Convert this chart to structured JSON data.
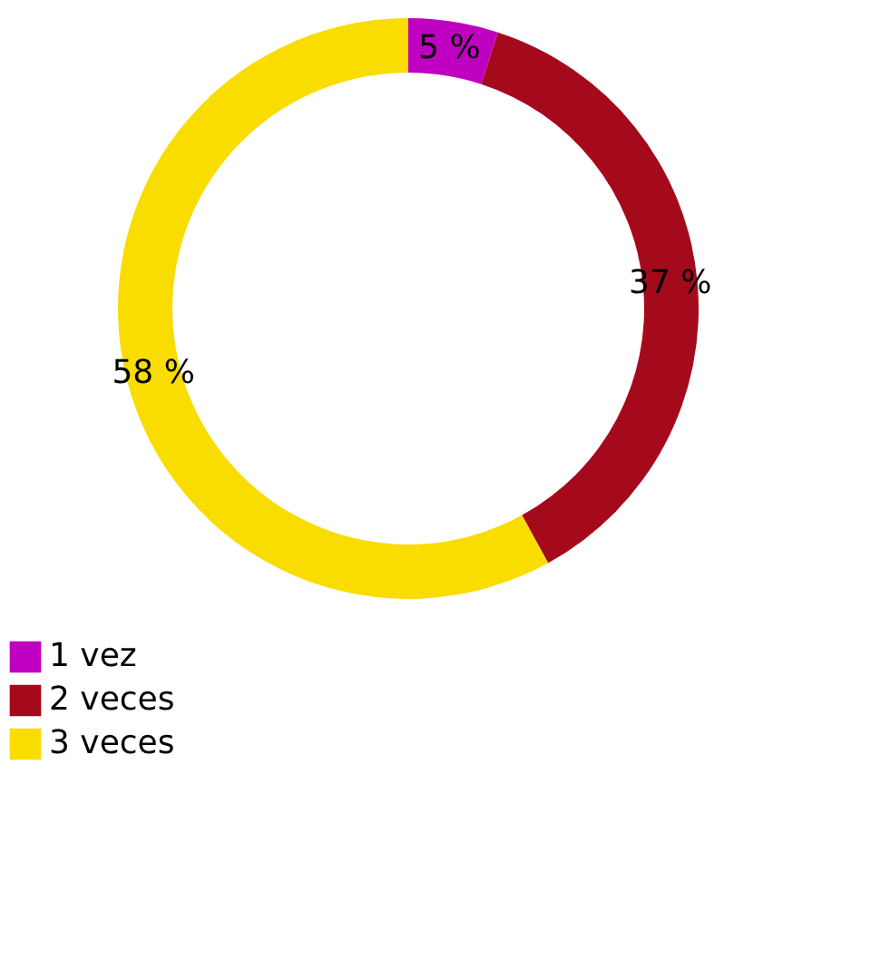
{
  "chart_data": {
    "type": "donut",
    "categories": [
      "1 vez",
      "2 veces",
      "3 veces"
    ],
    "values": [
      5,
      37,
      58
    ],
    "colors": [
      "#c000c0",
      "#a50a1c",
      "#f9dc00"
    ],
    "value_labels": [
      "5 %",
      "37 %",
      "58 %"
    ],
    "legend": "bottom left"
  }
}
